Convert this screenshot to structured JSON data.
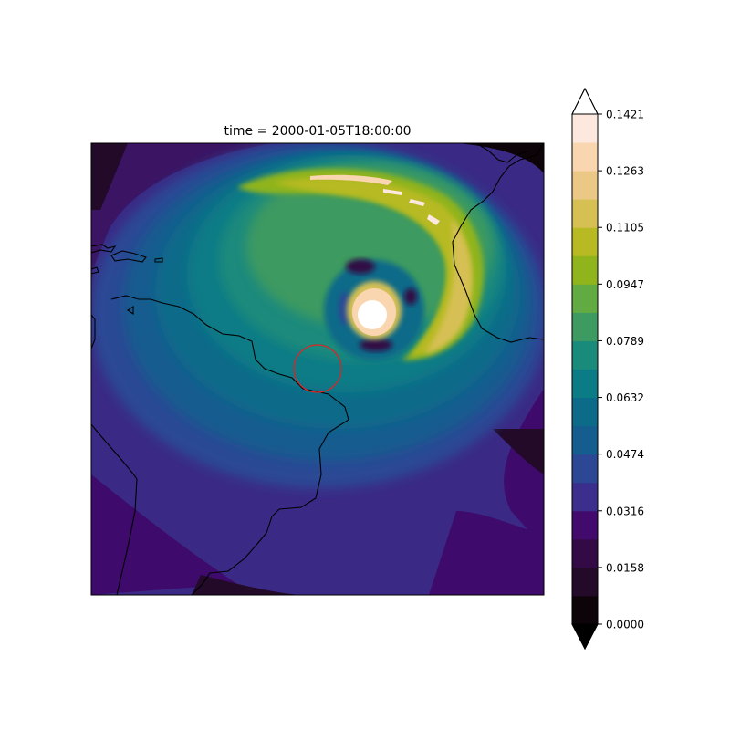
{
  "title": "time = 2000-01-05T18:00:00",
  "colorbar": {
    "tick_labels": [
      "0.0000",
      "0.0158",
      "0.0316",
      "0.0474",
      "0.0632",
      "0.0789",
      "0.0947",
      "0.1105",
      "0.1263",
      "0.1421"
    ],
    "colors": [
      "#0d0409",
      "#220a28",
      "#330a45",
      "#410a6c",
      "#3b2e8d",
      "#2c4894",
      "#155c8f",
      "#0b6b89",
      "#0b7b86",
      "#1a8a7b",
      "#3d9a61",
      "#62aa42",
      "#8fb41c",
      "#b7ba23",
      "#d6c054",
      "#ecc886",
      "#f9d6b0",
      "#fce8df"
    ],
    "extend": "both",
    "over_color": "#ffffff",
    "under_color": "#000000"
  },
  "map": {
    "marker_color": "#d62728"
  }
}
